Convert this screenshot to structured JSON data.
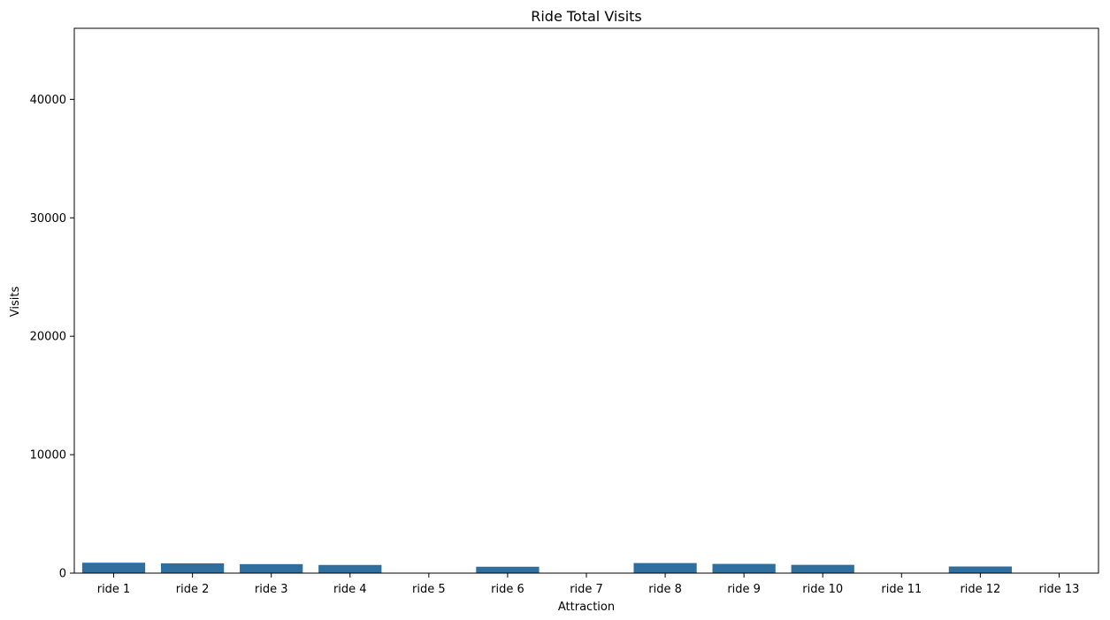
{
  "chart_data": {
    "type": "bar",
    "title": "Ride Total Visits",
    "xlabel": "Attraction",
    "ylabel": "Visits",
    "categories": [
      "ride 1",
      "ride 2",
      "ride 3",
      "ride 4",
      "ride 5",
      "ride 6",
      "ride 7",
      "ride 8",
      "ride 9",
      "ride 10",
      "ride 11",
      "ride 12",
      "ride 13"
    ],
    "values": [
      880,
      830,
      760,
      690,
      0,
      540,
      0,
      850,
      780,
      700,
      0,
      560,
      0
    ],
    "ylim": [
      0,
      46000
    ],
    "yticks": [
      0,
      10000,
      20000,
      30000,
      40000
    ],
    "grid": false,
    "bar_color": "#2f6f9f"
  }
}
